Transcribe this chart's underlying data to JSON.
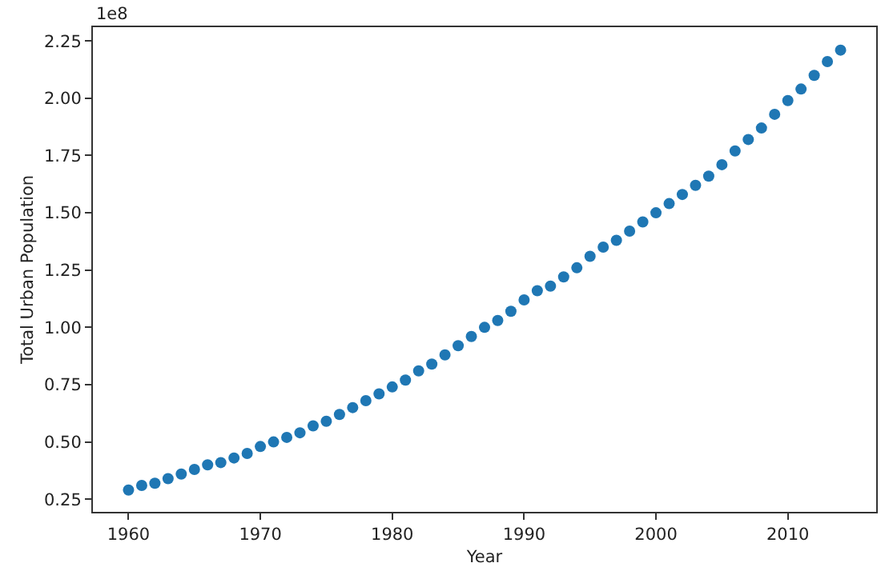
{
  "chart_data": {
    "type": "scatter",
    "xlabel": "Year",
    "ylabel": "Total Urban Population",
    "annotations": [
      "1e8"
    ],
    "x": [
      1960,
      1961,
      1962,
      1963,
      1964,
      1965,
      1966,
      1967,
      1968,
      1969,
      1970,
      1971,
      1972,
      1973,
      1974,
      1975,
      1976,
      1977,
      1978,
      1979,
      1980,
      1981,
      1982,
      1983,
      1984,
      1985,
      1986,
      1987,
      1988,
      1989,
      1990,
      1991,
      1992,
      1993,
      1994,
      1995,
      1996,
      1997,
      1998,
      1999,
      2000,
      2001,
      2002,
      2003,
      2004,
      2005,
      2006,
      2007,
      2008,
      2009,
      2010,
      2011,
      2012,
      2013,
      2014
    ],
    "series": [
      {
        "color": "#1f77b4",
        "values": [
          0.29,
          0.31,
          0.32,
          0.34,
          0.36,
          0.38,
          0.4,
          0.41,
          0.43,
          0.45,
          0.48,
          0.5,
          0.52,
          0.54,
          0.57,
          0.59,
          0.62,
          0.65,
          0.68,
          0.71,
          0.74,
          0.77,
          0.81,
          0.84,
          0.88,
          0.92,
          0.96,
          1.0,
          1.03,
          1.07,
          1.12,
          1.16,
          1.18,
          1.22,
          1.26,
          1.31,
          1.35,
          1.38,
          1.42,
          1.46,
          1.5,
          1.54,
          1.58,
          1.62,
          1.66,
          1.71,
          1.77,
          1.82,
          1.87,
          1.93,
          1.99,
          2.04,
          2.1,
          2.16,
          2.21
        ]
      }
    ],
    "xlim": [
      1957.3,
      2016.7
    ],
    "ylim": [
      0.195,
      2.31
    ],
    "xticks": [
      1960,
      1970,
      1980,
      1990,
      2000,
      2010
    ],
    "yticks": [
      {
        "value": 0.25,
        "label": "0.25"
      },
      {
        "value": 0.5,
        "label": "0.50"
      },
      {
        "value": 0.75,
        "label": "0.75"
      },
      {
        "value": 1,
        "label": "1.00"
      },
      {
        "value": 1.25,
        "label": "1.25"
      },
      {
        "value": 1.5,
        "label": "1.50"
      },
      {
        "value": 1.75,
        "label": "1.75"
      },
      {
        "value": 2,
        "label": "2.00"
      },
      {
        "value": 2.25,
        "label": "2.25"
      }
    ],
    "marker": "circle",
    "grid": false
  }
}
